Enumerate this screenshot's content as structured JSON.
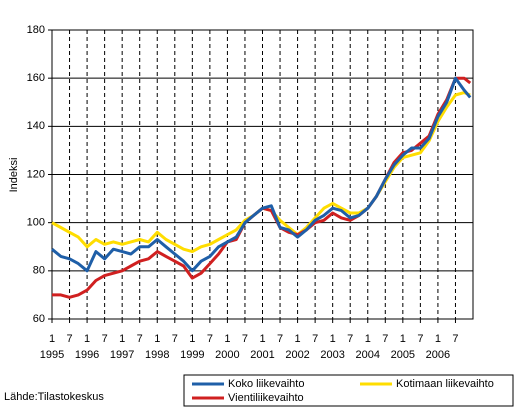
{
  "chart_data": {
    "type": "line",
    "y_label": "Indeksi",
    "source": "Lähde:Tilastokeskus",
    "x": [
      1995,
      1995.25,
      1995.5,
      1995.75,
      1996,
      1996.25,
      1996.5,
      1996.75,
      1997,
      1997.25,
      1997.5,
      1997.75,
      1998,
      1998.25,
      1998.5,
      1998.75,
      1999,
      1999.25,
      1999.5,
      1999.75,
      2000,
      2000.25,
      2000.5,
      2000.75,
      2001,
      2001.25,
      2001.5,
      2001.75,
      2002,
      2002.25,
      2002.5,
      2002.75,
      2003,
      2003.25,
      2003.5,
      2003.75,
      2004,
      2004.25,
      2004.5,
      2004.75,
      2005,
      2005.25,
      2005.5,
      2005.75,
      2006,
      2006.25,
      2006.5,
      2006.75,
      2006.92
    ],
    "series": [
      {
        "name": "Kotimaan liikevaihto",
        "color": "#ffdd00",
        "values": [
          100,
          98,
          96,
          94,
          90,
          93,
          91,
          92,
          91,
          92,
          93,
          92,
          96,
          93,
          91,
          89,
          88,
          90,
          91,
          93,
          95,
          97,
          101,
          103,
          106,
          105,
          101,
          98,
          95,
          98,
          102,
          106,
          108,
          106,
          104,
          104,
          106,
          111,
          117,
          123,
          127,
          128,
          129,
          134,
          142,
          148,
          153,
          154,
          153
        ]
      },
      {
        "name": "Vientiliikevaihto",
        "color": "#d02020",
        "values": [
          70,
          70,
          69,
          70,
          72,
          76,
          78,
          79,
          80,
          82,
          84,
          85,
          88,
          86,
          84,
          82,
          77,
          79,
          83,
          87,
          92,
          93,
          100,
          103,
          106,
          105,
          98,
          96,
          95,
          97,
          100,
          101,
          104,
          102,
          101,
          103,
          106,
          111,
          118,
          125,
          129,
          130,
          133,
          136,
          145,
          151,
          160,
          160,
          158
        ]
      },
      {
        "name": "Koko liikevaihto",
        "color": "#1f5fa8",
        "values": [
          89,
          86,
          85,
          83,
          80,
          88,
          85,
          89,
          88,
          87,
          90,
          90,
          93,
          90,
          87,
          84,
          80,
          84,
          86,
          90,
          92,
          94,
          100,
          103,
          106,
          107,
          98,
          97,
          94,
          97,
          101,
          103,
          106,
          105,
          102,
          103,
          106,
          111,
          118,
          124,
          128,
          131,
          131,
          135,
          144,
          150,
          160,
          155,
          152
        ]
      }
    ],
    "xlim": [
      1995,
      2007
    ],
    "xticks": [
      {
        "value": 1995,
        "label": "1"
      },
      {
        "value": 1995.5,
        "label": "7"
      },
      {
        "value": 1996,
        "label": "1"
      },
      {
        "value": 1996.5,
        "label": "7"
      },
      {
        "value": 1997,
        "label": "1"
      },
      {
        "value": 1997.5,
        "label": "7"
      },
      {
        "value": 1998,
        "label": "1"
      },
      {
        "value": 1998.5,
        "label": "7"
      },
      {
        "value": 1999,
        "label": "1"
      },
      {
        "value": 1999.5,
        "label": "7"
      },
      {
        "value": 2000,
        "label": "1"
      },
      {
        "value": 2000.5,
        "label": "7"
      },
      {
        "value": 2001,
        "label": "1"
      },
      {
        "value": 2001.5,
        "label": "7"
      },
      {
        "value": 2002,
        "label": "1"
      },
      {
        "value": 2002.5,
        "label": "7"
      },
      {
        "value": 2003,
        "label": "1"
      },
      {
        "value": 2003.5,
        "label": "7"
      },
      {
        "value": 2004,
        "label": "1"
      },
      {
        "value": 2004.5,
        "label": "7"
      },
      {
        "value": 2005,
        "label": "1"
      },
      {
        "value": 2005.5,
        "label": "7"
      },
      {
        "value": 2006,
        "label": "1"
      },
      {
        "value": 2006.5,
        "label": "7"
      }
    ],
    "year_ticks": [
      1995,
      1996,
      1997,
      1998,
      1999,
      2000,
      2001,
      2002,
      2003,
      2004,
      2005,
      2006
    ],
    "ylim": [
      60,
      180
    ],
    "yticks": [
      60,
      80,
      100,
      120,
      140,
      160,
      180
    ],
    "grid": true,
    "legend": "bottom"
  }
}
